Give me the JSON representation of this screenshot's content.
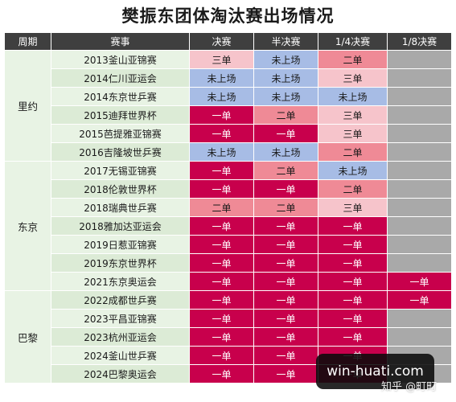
{
  "title": "樊振东团体淘汰赛出场情况",
  "headers": [
    "周期",
    "赛事",
    "决赛",
    "半决赛",
    "1/4决赛",
    "1/8决赛"
  ],
  "legend_colors": {
    "一单": "#c8004c",
    "二单": "#ef8a96",
    "三单": "#f6c4cb",
    "未上场": "#a7bce5",
    "无": "#a9a9a9"
  },
  "periods": [
    {
      "name": "里约",
      "rows": [
        {
          "event": "2013釜山亚锦赛",
          "cells": [
            "三单",
            "未上场",
            "二单",
            ""
          ]
        },
        {
          "event": "2014仁川亚运会",
          "cells": [
            "未上场",
            "未上场",
            "三单",
            ""
          ]
        },
        {
          "event": "2014东京世乒赛",
          "cells": [
            "未上场",
            "未上场",
            "未上场",
            ""
          ]
        },
        {
          "event": "2015迪拜世界杯",
          "cells": [
            "一单",
            "二单",
            "三单",
            ""
          ]
        },
        {
          "event": "2015芭提雅亚锦赛",
          "cells": [
            "一单",
            "一单",
            "三单",
            ""
          ]
        },
        {
          "event": "2016吉隆坡世乒赛",
          "cells": [
            "未上场",
            "未上场",
            "二单",
            ""
          ]
        }
      ]
    },
    {
      "name": "东京",
      "rows": [
        {
          "event": "2017无锡亚锦赛",
          "cells": [
            "一单",
            "二单",
            "未上场",
            ""
          ]
        },
        {
          "event": "2018伦敦世界杯",
          "cells": [
            "一单",
            "一单",
            "二单",
            ""
          ]
        },
        {
          "event": "2018瑞典世乒赛",
          "cells": [
            "二单",
            "二单",
            "三单",
            ""
          ]
        },
        {
          "event": "2018雅加达亚运会",
          "cells": [
            "一单",
            "一单",
            "一单",
            ""
          ]
        },
        {
          "event": "2019日惹亚锦赛",
          "cells": [
            "一单",
            "一单",
            "一单",
            ""
          ]
        },
        {
          "event": "2019东京世界杯",
          "cells": [
            "一单",
            "一单",
            "一单",
            ""
          ]
        },
        {
          "event": "2021东京奥运会",
          "cells": [
            "一单",
            "一单",
            "一单",
            "一单"
          ]
        }
      ]
    },
    {
      "name": "巴黎",
      "rows": [
        {
          "event": "2022成都世乒赛",
          "cells": [
            "一单",
            "一单",
            "一单",
            "一单"
          ]
        },
        {
          "event": "2023平昌亚锦赛",
          "cells": [
            "一单",
            "一单",
            "一单",
            ""
          ]
        },
        {
          "event": "2023杭州亚运会",
          "cells": [
            "一单",
            "一单",
            "一单",
            ""
          ]
        },
        {
          "event": "2024釜山世乒赛",
          "cells": [
            "一单",
            "一单",
            "一单",
            ""
          ]
        },
        {
          "event": "2024巴黎奥运会",
          "cells": [
            "一单",
            "一单",
            "一单",
            ""
          ]
        }
      ]
    }
  ],
  "watermark": "win-huati.com",
  "zhihu_mark": "知乎 @町町"
}
